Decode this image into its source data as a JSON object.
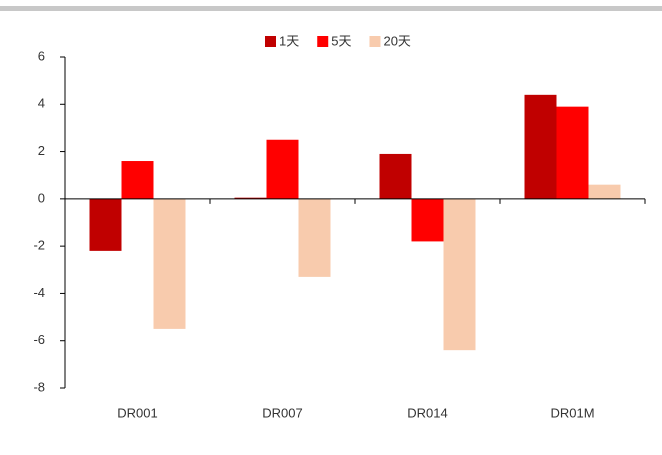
{
  "chart_data": {
    "type": "bar",
    "categories": [
      "DR001",
      "DR007",
      "DR014",
      "DR01M"
    ],
    "series": [
      {
        "name": "1天",
        "color": "#c00000",
        "values": [
          -2.2,
          0.05,
          1.9,
          4.4
        ]
      },
      {
        "name": "5天",
        "color": "#ff0000",
        "values": [
          1.6,
          2.5,
          -1.8,
          3.9
        ]
      },
      {
        "name": "20天",
        "color": "#f8cbad",
        "values": [
          -5.5,
          -3.3,
          -6.4,
          0.6
        ]
      }
    ],
    "ylim": [
      -8,
      6
    ],
    "yticks": [
      -8,
      -6,
      -4,
      -2,
      0,
      2,
      4,
      6
    ],
    "legend": "top"
  }
}
